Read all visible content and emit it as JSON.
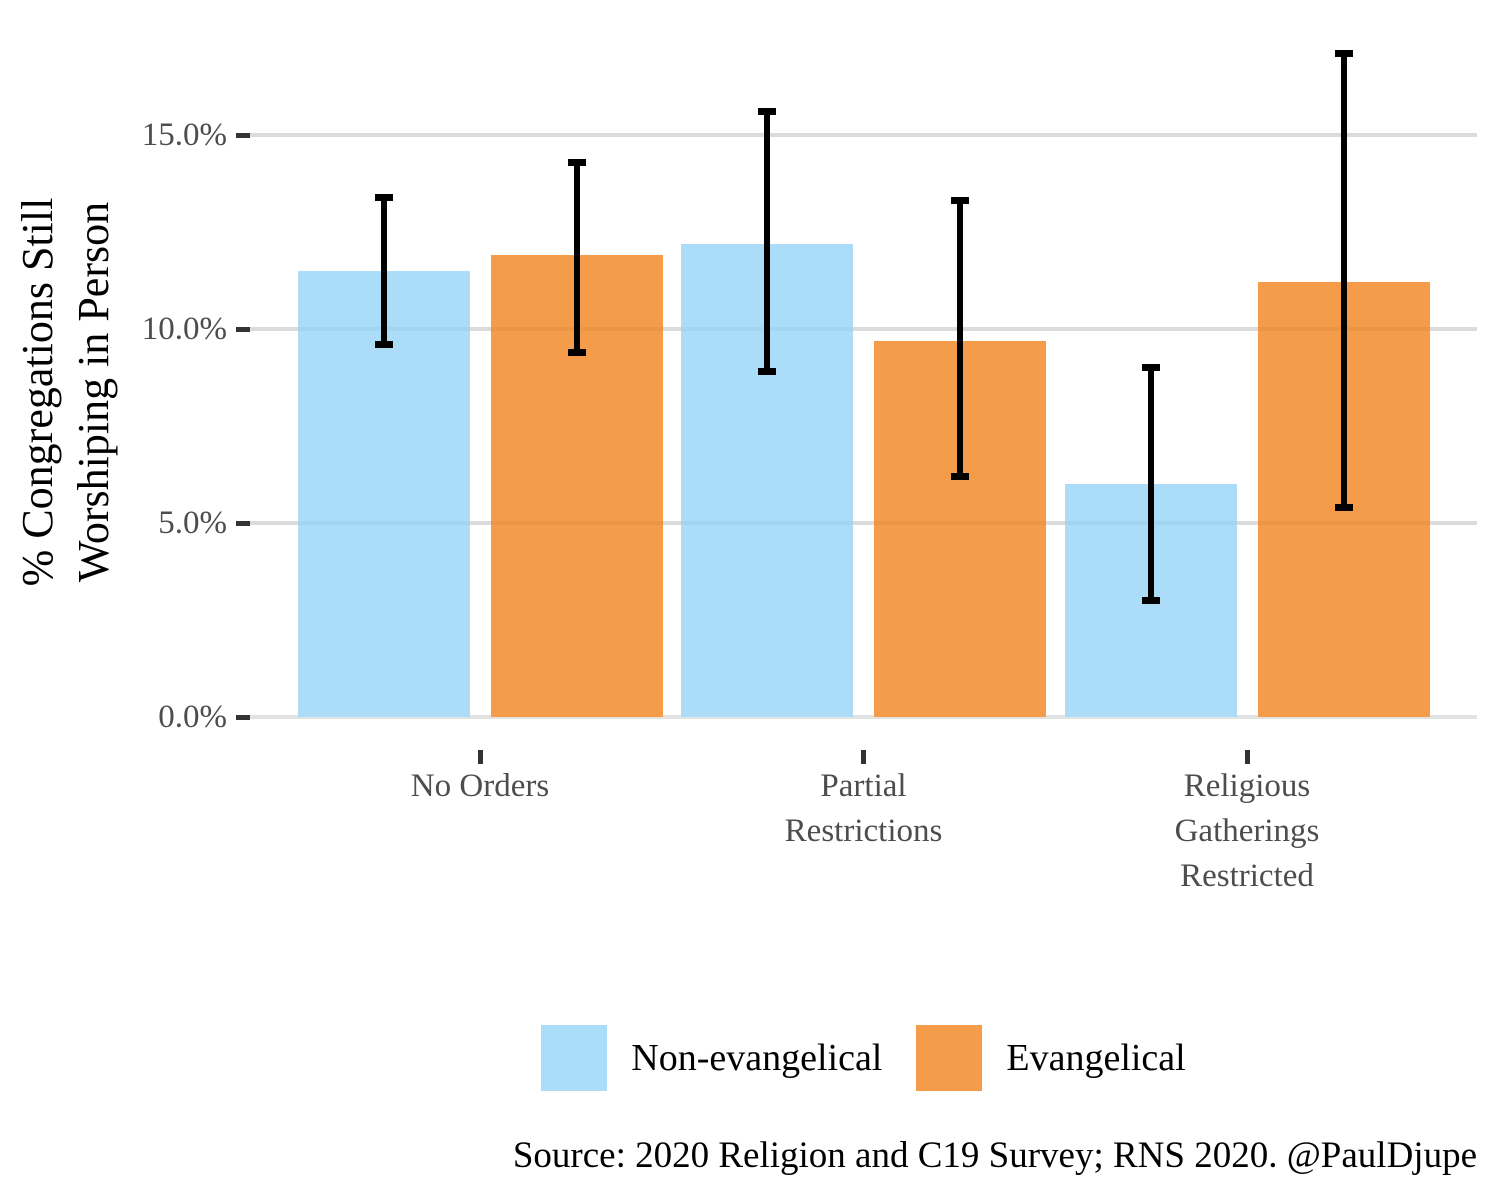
{
  "chart_data": {
    "type": "bar",
    "title": "",
    "xlabel": "",
    "ylabel": "% Congregations Still\nWorshiping in Person",
    "categories": [
      "No Orders",
      "Partial Restrictions",
      "Religious Gatherings Restricted"
    ],
    "category_tick_labels": [
      "No Orders",
      "Partial\nRestrictions",
      "Religious\nGatherings\nRestricted"
    ],
    "series": [
      {
        "name": "Non-evangelical",
        "color": "#ABDDF9",
        "values": [
          11.5,
          12.2,
          6.0
        ],
        "error_low": [
          9.6,
          8.9,
          3.0
        ],
        "error_high": [
          13.4,
          15.6,
          9.0
        ]
      },
      {
        "name": "Evangelical",
        "color": "#F49C49",
        "values": [
          11.9,
          9.7,
          11.2
        ],
        "error_low": [
          9.4,
          6.2,
          5.4
        ],
        "error_high": [
          14.3,
          13.3,
          17.1
        ]
      }
    ],
    "y_ticks": [
      {
        "value": 0,
        "label": "0.0%"
      },
      {
        "value": 5,
        "label": "5.0%"
      },
      {
        "value": 10,
        "label": "10.0%"
      },
      {
        "value": 15,
        "label": "15.0%"
      }
    ],
    "ylim": [
      0,
      17.5
    ],
    "grid": "horizontal-major",
    "error_bars": true,
    "legend_position": "bottom",
    "source_note": "Source: 2020 Religion and C19 Survey; RNS 2020. @PaulDjupe"
  },
  "colors": {
    "background": "#FFFFFF",
    "gridline": "#E3E3E3",
    "axis_tick": "#333333",
    "axis_text": "#4D4D4D",
    "error_bar": "#000000",
    "text": "#000000",
    "bar_non_evangelical": "#ABDDF9",
    "bar_evangelical": "#F49C49"
  }
}
